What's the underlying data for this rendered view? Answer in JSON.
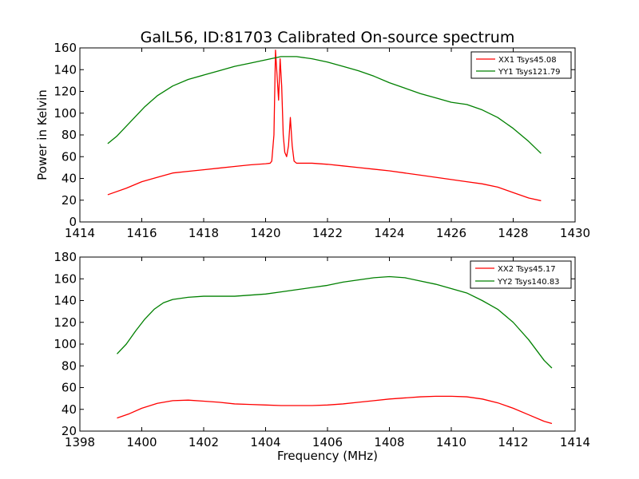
{
  "colors": {
    "red": "#ff0000",
    "green": "#008000",
    "axis": "#000000",
    "background": "#ffffff"
  },
  "chart_data": [
    {
      "type": "line",
      "title": "GalL56, ID:81703 Calibrated On-source spectrum",
      "xlabel": "",
      "ylabel": "Power in Kelvin",
      "xlim": [
        1414,
        1430
      ],
      "ylim": [
        0,
        160
      ],
      "xticks": [
        1414,
        1416,
        1418,
        1420,
        1422,
        1424,
        1426,
        1428,
        1430
      ],
      "yticks": [
        0,
        20,
        40,
        60,
        80,
        100,
        120,
        140,
        160
      ],
      "grid": false,
      "legend_position": "top-right",
      "series": [
        {
          "name": "XX1 Tsys45.08",
          "color": "#ff0000",
          "points": [
            [
              1414.9,
              25
            ],
            [
              1415.5,
              31
            ],
            [
              1416.0,
              37
            ],
            [
              1416.5,
              41
            ],
            [
              1417.0,
              45
            ],
            [
              1417.5,
              46.5
            ],
            [
              1418.0,
              48
            ],
            [
              1418.5,
              49.5
            ],
            [
              1419.0,
              51
            ],
            [
              1419.5,
              52.5
            ],
            [
              1420.0,
              53.5
            ],
            [
              1420.15,
              54
            ],
            [
              1420.2,
              56
            ],
            [
              1420.27,
              80
            ],
            [
              1420.32,
              158
            ],
            [
              1420.37,
              135
            ],
            [
              1420.42,
              112
            ],
            [
              1420.47,
              150
            ],
            [
              1420.52,
              125
            ],
            [
              1420.57,
              80
            ],
            [
              1420.62,
              64
            ],
            [
              1420.68,
              60
            ],
            [
              1420.74,
              70
            ],
            [
              1420.8,
              96
            ],
            [
              1420.86,
              70
            ],
            [
              1420.92,
              56
            ],
            [
              1421.0,
              54
            ],
            [
              1421.5,
              54
            ],
            [
              1422.0,
              53
            ],
            [
              1422.5,
              51.5
            ],
            [
              1423.0,
              50
            ],
            [
              1423.5,
              48.5
            ],
            [
              1424.0,
              47
            ],
            [
              1424.5,
              45
            ],
            [
              1425.0,
              43
            ],
            [
              1425.5,
              41
            ],
            [
              1426.0,
              39
            ],
            [
              1426.5,
              37
            ],
            [
              1427.0,
              35
            ],
            [
              1427.5,
              32
            ],
            [
              1428.0,
              27
            ],
            [
              1428.5,
              22
            ],
            [
              1428.9,
              19.5
            ]
          ]
        },
        {
          "name": "YY1 Tsys121.79",
          "color": "#008000",
          "points": [
            [
              1414.9,
              72
            ],
            [
              1415.2,
              79
            ],
            [
              1415.5,
              88
            ],
            [
              1415.8,
              97
            ],
            [
              1416.1,
              106
            ],
            [
              1416.5,
              116
            ],
            [
              1417.0,
              125
            ],
            [
              1417.5,
              131
            ],
            [
              1418.0,
              135
            ],
            [
              1418.5,
              139
            ],
            [
              1419.0,
              143
            ],
            [
              1419.5,
              146
            ],
            [
              1420.0,
              149
            ],
            [
              1420.5,
              152
            ],
            [
              1421.0,
              152
            ],
            [
              1421.5,
              150
            ],
            [
              1422.0,
              147
            ],
            [
              1422.5,
              143
            ],
            [
              1423.0,
              139
            ],
            [
              1423.5,
              134
            ],
            [
              1424.0,
              128
            ],
            [
              1424.5,
              123
            ],
            [
              1425.0,
              118
            ],
            [
              1425.5,
              114
            ],
            [
              1426.0,
              110
            ],
            [
              1426.5,
              108
            ],
            [
              1427.0,
              103
            ],
            [
              1427.5,
              96
            ],
            [
              1428.0,
              86
            ],
            [
              1428.5,
              74
            ],
            [
              1428.9,
              63
            ]
          ]
        }
      ]
    },
    {
      "type": "line",
      "title": "",
      "xlabel": "Frequency (MHz)",
      "ylabel": "",
      "xlim": [
        1398,
        1414
      ],
      "ylim": [
        20,
        180
      ],
      "xticks": [
        1398,
        1400,
        1402,
        1404,
        1406,
        1408,
        1410,
        1412,
        1414
      ],
      "yticks": [
        20,
        40,
        60,
        80,
        100,
        120,
        140,
        160,
        180
      ],
      "grid": false,
      "legend_position": "top-right",
      "series": [
        {
          "name": "XX2 Tsys45.17",
          "color": "#ff0000",
          "points": [
            [
              1399.2,
              32
            ],
            [
              1399.6,
              36
            ],
            [
              1400.0,
              41
            ],
            [
              1400.5,
              45.5
            ],
            [
              1401.0,
              48
            ],
            [
              1401.5,
              48.5
            ],
            [
              1402.0,
              47.5
            ],
            [
              1402.5,
              46.5
            ],
            [
              1403.0,
              45
            ],
            [
              1403.5,
              44.5
            ],
            [
              1404.0,
              44
            ],
            [
              1404.5,
              43.5
            ],
            [
              1405.0,
              43.5
            ],
            [
              1405.5,
              43.5
            ],
            [
              1406.0,
              44
            ],
            [
              1406.5,
              45
            ],
            [
              1407.0,
              46.5
            ],
            [
              1407.5,
              48
            ],
            [
              1408.0,
              49.5
            ],
            [
              1408.5,
              50.5
            ],
            [
              1409.0,
              51.5
            ],
            [
              1409.5,
              52
            ],
            [
              1410.0,
              52
            ],
            [
              1410.5,
              51.5
            ],
            [
              1411.0,
              49.5
            ],
            [
              1411.5,
              46
            ],
            [
              1412.0,
              41
            ],
            [
              1412.5,
              35
            ],
            [
              1413.0,
              29
            ],
            [
              1413.25,
              27
            ]
          ]
        },
        {
          "name": "YY2 Tsys140.83",
          "color": "#008000",
          "points": [
            [
              1399.2,
              91
            ],
            [
              1399.5,
              100
            ],
            [
              1399.8,
              112
            ],
            [
              1400.1,
              123
            ],
            [
              1400.4,
              132
            ],
            [
              1400.7,
              138
            ],
            [
              1401.0,
              141
            ],
            [
              1401.5,
              143
            ],
            [
              1402.0,
              144
            ],
            [
              1402.5,
              144
            ],
            [
              1403.0,
              144
            ],
            [
              1403.5,
              145
            ],
            [
              1404.0,
              146
            ],
            [
              1404.5,
              148
            ],
            [
              1405.0,
              150
            ],
            [
              1405.5,
              152
            ],
            [
              1406.0,
              154
            ],
            [
              1406.5,
              157
            ],
            [
              1407.0,
              159
            ],
            [
              1407.5,
              161
            ],
            [
              1408.0,
              162
            ],
            [
              1408.5,
              161
            ],
            [
              1409.0,
              158
            ],
            [
              1409.5,
              155
            ],
            [
              1410.0,
              151
            ],
            [
              1410.5,
              147
            ],
            [
              1411.0,
              140
            ],
            [
              1411.5,
              132
            ],
            [
              1412.0,
              120
            ],
            [
              1412.5,
              104
            ],
            [
              1413.0,
              85
            ],
            [
              1413.25,
              78
            ]
          ]
        }
      ]
    }
  ]
}
